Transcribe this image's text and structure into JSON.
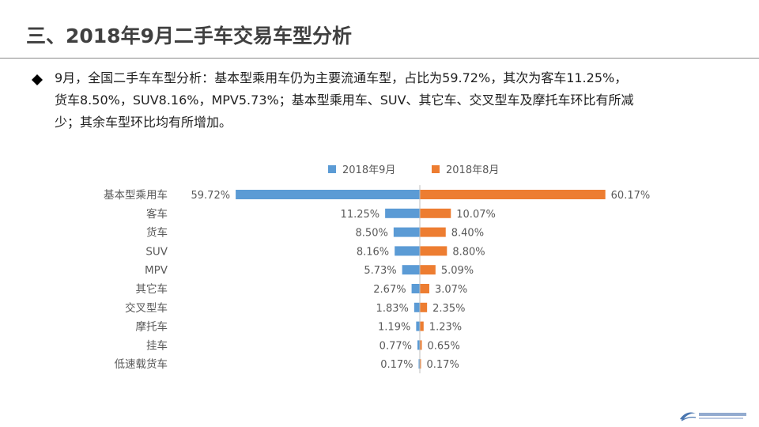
{
  "slide": {
    "title": "三、2018年9月二手车交易车型分析",
    "bullet_lines": [
      "9月，全国二手车车型分析：基本型乘用车仍为主要流通车型，占比为59.72%，其次为客车11.25%，",
      "货车8.50%，SUV8.16%，MPV5.73%；基本型乘用车、SUV、其它车、交叉型车及摩托车环比有所减",
      "少；其余车型环比均有所增加。"
    ],
    "bullet_icon": "diamond-bullet-icon",
    "footer_logo": "china-automobile-dealers-association-logo",
    "colors": {
      "title": "#404040",
      "text": "#202020",
      "sep_bar": "#5b9bd5",
      "aug_bar": "#ed7d31",
      "axis": "#a6a6a6"
    }
  },
  "chart_data": {
    "type": "bar",
    "orientation": "horizontal",
    "layout": "butterfly",
    "legend_position": "top",
    "categories": [
      "基本型乘用车",
      "客车",
      "货车",
      "SUV",
      "MPV",
      "其它车",
      "交叉型车",
      "摩托车",
      "挂车",
      "低速载货车"
    ],
    "series": [
      {
        "name": "2018年9月",
        "color": "#5b9bd5",
        "direction": "left",
        "values": [
          59.72,
          11.25,
          8.5,
          8.16,
          5.73,
          2.67,
          1.83,
          1.19,
          0.77,
          0.17
        ],
        "labels": [
          "59.72%",
          "11.25%",
          "8.50%",
          "8.16%",
          "5.73%",
          "2.67%",
          "1.83%",
          "1.19%",
          "0.77%",
          "0.17%"
        ]
      },
      {
        "name": "2018年8月",
        "color": "#ed7d31",
        "direction": "right",
        "values": [
          60.17,
          10.07,
          8.4,
          8.8,
          5.09,
          3.07,
          2.35,
          1.23,
          0.65,
          0.17
        ],
        "labels": [
          "60.17%",
          "10.07%",
          "8.40%",
          "8.80%",
          "5.09%",
          "3.07%",
          "2.35%",
          "1.23%",
          "0.65%",
          "0.17%"
        ]
      }
    ],
    "title": "",
    "xlabel": "",
    "ylabel": "",
    "grid": false
  }
}
